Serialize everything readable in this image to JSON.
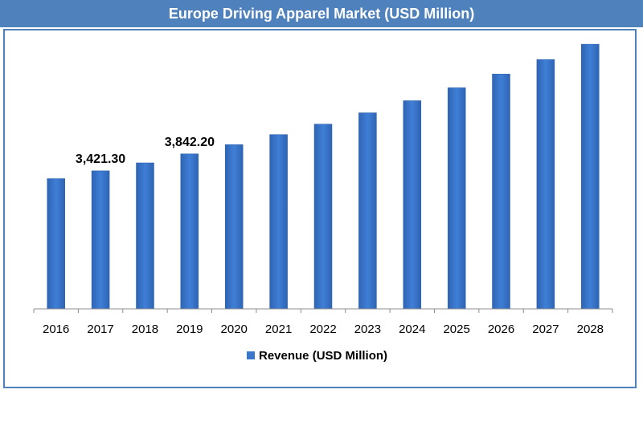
{
  "chart_data": {
    "type": "bar",
    "title": "Europe Driving Apparel Market (USD Million)",
    "categories": [
      "2016",
      "2017",
      "2018",
      "2019",
      "2020",
      "2021",
      "2022",
      "2023",
      "2024",
      "2025",
      "2026",
      "2027",
      "2028"
    ],
    "series": [
      {
        "name": "Revenue (USD Million)",
        "values": [
          3230,
          3421.3,
          3620,
          3842.2,
          4070,
          4320,
          4580,
          4860,
          5160,
          5480,
          5820,
          6180,
          6560
        ],
        "data_labels": [
          "",
          "3,421.30",
          "",
          "3,842.20",
          "",
          "",
          "",
          "",
          "",
          "",
          "",
          "",
          ""
        ]
      }
    ],
    "ylim": [
      0,
      6900
    ],
    "legend_position": "bottom",
    "grid": false,
    "colors": {
      "title_bar": "#4f81bd",
      "bar": "#3a78cc",
      "bar_edge": "#2a5fa8",
      "frame": "#4f81bd"
    }
  }
}
